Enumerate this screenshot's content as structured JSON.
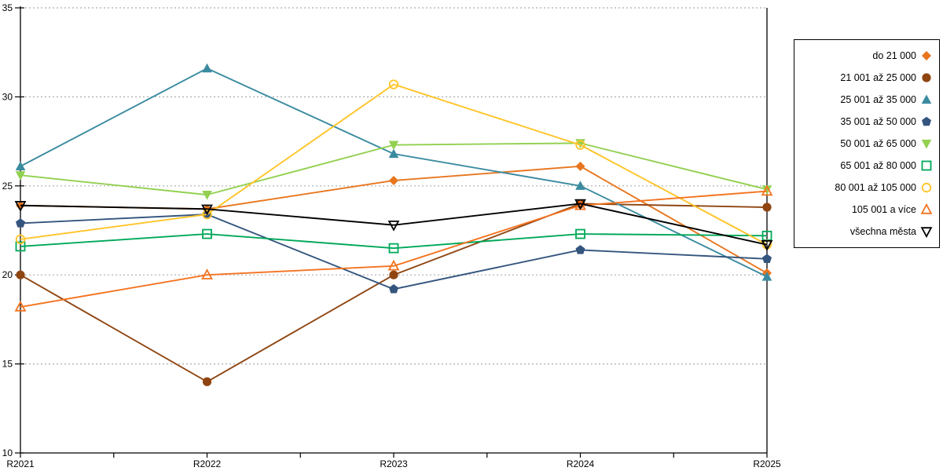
{
  "chart_data": {
    "type": "line",
    "title": "",
    "xlabel": "",
    "ylabel": "",
    "x_labels": [
      "R2021",
      "R2022",
      "R2023",
      "R2024",
      "R2025"
    ],
    "ylim": [
      10,
      35
    ],
    "yticks": [
      10,
      15,
      20,
      25,
      30,
      35
    ],
    "grid": "horizontal-dotted",
    "legend_position": "right",
    "series": [
      {
        "name": "do 21 000",
        "marker": "diamond-filled",
        "color": "#E8761E",
        "values": [
          23.9,
          23.7,
          25.3,
          26.1,
          20.1
        ]
      },
      {
        "name": "21 001 až 25 000",
        "marker": "circle-filled",
        "color": "#8F4511",
        "values": [
          20.0,
          14.0,
          20.0,
          24.0,
          23.8
        ]
      },
      {
        "name": "25 001 až 35 000",
        "marker": "triangle-up-filled",
        "color": "#3B8BA0",
        "values": [
          26.1,
          31.6,
          26.8,
          25.0,
          19.9
        ]
      },
      {
        "name": "35 001 až 50 000",
        "marker": "pentagon-filled",
        "color": "#34557E",
        "values": [
          22.9,
          23.4,
          19.2,
          21.4,
          20.9
        ]
      },
      {
        "name": "50 001 až 65 000",
        "marker": "triangle-down-filled",
        "color": "#92D050",
        "values": [
          25.6,
          24.5,
          27.3,
          27.4,
          24.8
        ]
      },
      {
        "name": "65 001 až 80 000",
        "marker": "square-open",
        "color": "#00A859",
        "values": [
          21.6,
          22.3,
          21.5,
          22.3,
          22.2
        ]
      },
      {
        "name": "80 001 až 105 000",
        "marker": "circle-open",
        "color": "#FFC428",
        "values": [
          22.0,
          23.4,
          30.7,
          27.3,
          21.7
        ]
      },
      {
        "name": "105 001 a více",
        "marker": "triangle-up-open",
        "color": "#F4731F",
        "values": [
          18.2,
          20.0,
          20.5,
          23.9,
          24.7
        ]
      },
      {
        "name": "všechna města",
        "marker": "triangle-down-open",
        "color": "#000000",
        "values": [
          23.9,
          23.7,
          22.8,
          24.0,
          21.7
        ]
      }
    ],
    "axis_color": "#000000",
    "gridline_color": "#ADADAD",
    "tick_label_color": "#000000"
  }
}
